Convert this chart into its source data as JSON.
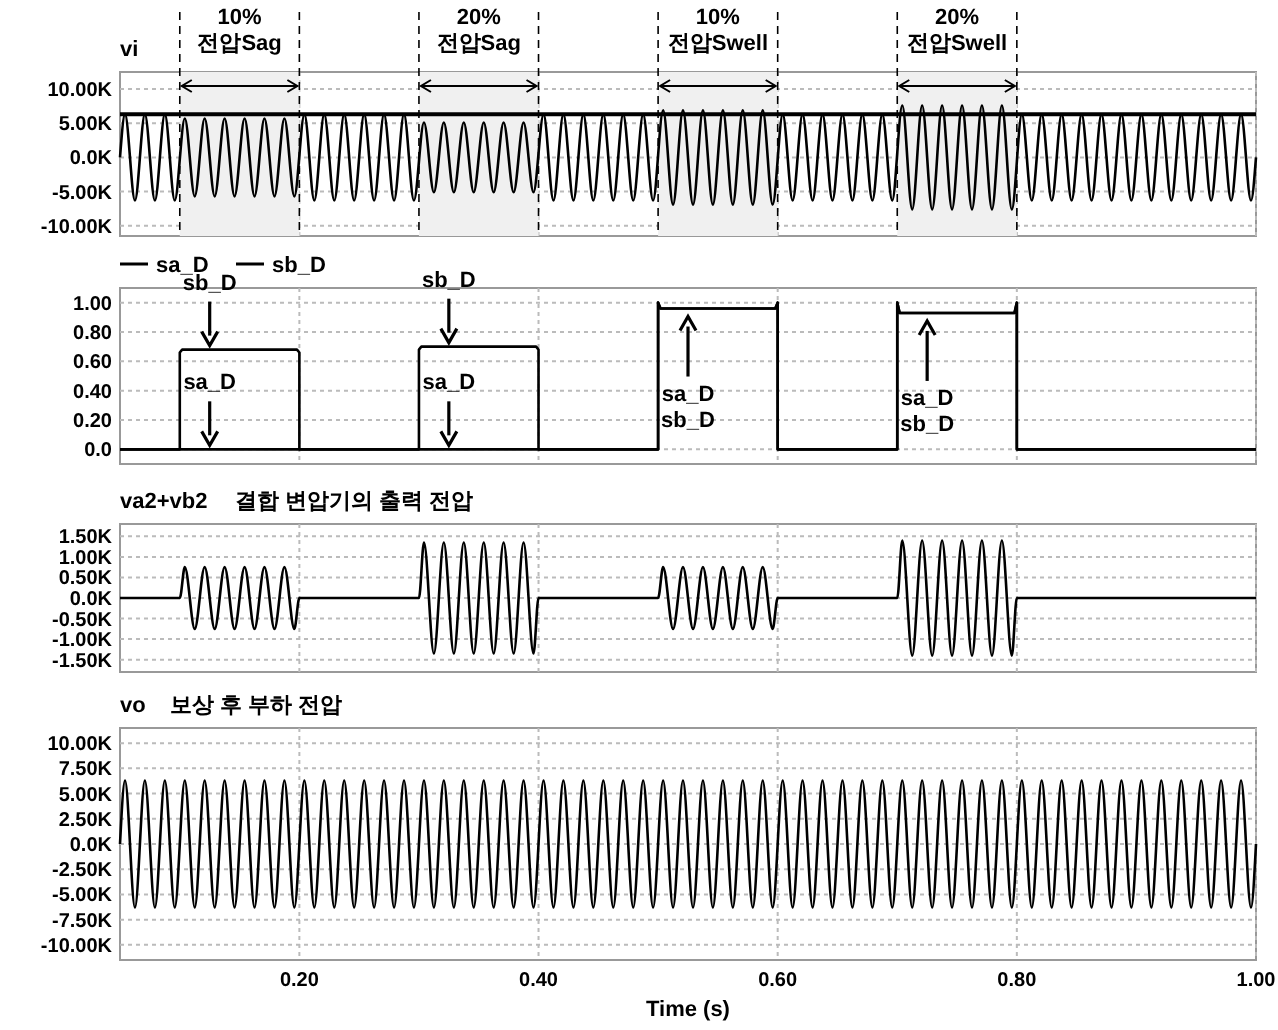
{
  "chart_data": [
    {
      "type": "line",
      "xlim": [
        0.05,
        1.0
      ],
      "ylim": [
        -11500,
        12500
      ],
      "xticks": [
        {
          "value": 0.2,
          "label": null
        },
        {
          "value": 0.4,
          "label": null
        },
        {
          "value": 0.6,
          "label": null
        },
        {
          "value": 0.8,
          "label": null
        },
        {
          "value": 1.0,
          "label": null
        }
      ],
      "yticks": [
        {
          "value": 10000,
          "label": "10.00K"
        },
        {
          "value": 5000,
          "label": "5.00K"
        },
        {
          "value": 0,
          "label": "0.0K"
        },
        {
          "value": -5000,
          "label": "-5.00K"
        },
        {
          "value": -10000,
          "label": "-10.00K"
        }
      ],
      "tick_labels": "y",
      "grid": true,
      "legend": "top left",
      "x": [
        0.05,
        0.0542,
        0.0625,
        0.0708,
        0.0792,
        0.0875,
        0.0958,
        0.1042,
        0.1125,
        0.1208,
        0.1292,
        0.1375,
        0.1458,
        0.1542,
        0.1625,
        0.1708,
        0.1792,
        0.1875,
        0.1958,
        0.2042,
        0.2125,
        0.2208,
        0.2292,
        0.2375,
        0.2458,
        0.2542,
        0.2625,
        0.2708,
        0.2792,
        0.2875,
        0.2958,
        0.3042,
        0.3125,
        0.3208,
        0.3292,
        0.3375,
        0.3458,
        0.3542,
        0.3625,
        0.3708,
        0.3792,
        0.3875,
        0.3958,
        0.4042,
        0.4125,
        0.4208,
        0.4292,
        0.4375,
        0.4458,
        0.4542,
        0.4625,
        0.4708,
        0.4792,
        0.4875,
        0.4958,
        0.5042,
        0.5125,
        0.5208,
        0.5292,
        0.5375,
        0.5458,
        0.5542,
        0.5625,
        0.5708,
        0.5792,
        0.5875,
        0.5958,
        0.6042,
        0.6125,
        0.6208,
        0.6292,
        0.6375,
        0.6458,
        0.6542,
        0.6625,
        0.6708,
        0.6792,
        0.6875,
        0.6958,
        0.7042,
        0.7125,
        0.7208,
        0.7292,
        0.7375,
        0.7458,
        0.7542,
        0.7625,
        0.7708,
        0.7792,
        0.7875,
        0.7958,
        0.8042,
        0.8125,
        0.8208,
        0.8292,
        0.8375,
        0.8458,
        0.8542,
        0.8625,
        0.8708,
        0.8792,
        0.8875,
        0.8958,
        0.9042,
        0.9125,
        0.9208,
        0.9292,
        0.9375,
        0.9458,
        0.9542,
        0.9625,
        0.9708,
        0.9792,
        0.9875,
        0.9958,
        1.0
      ],
      "series": [
        {
          "name": "vi",
          "color": "#000000",
          "values": [
            0,
            6300,
            -6300,
            6300,
            -6300,
            6300,
            -6300,
            5700,
            -5700,
            5700,
            -5700,
            5700,
            -5700,
            5700,
            -5700,
            5700,
            -5700,
            5700,
            -5700,
            6300,
            -6300,
            6300,
            -6300,
            6300,
            -6300,
            6300,
            -6300,
            6300,
            -6300,
            6300,
            -6300,
            5100,
            -5100,
            5100,
            -5100,
            5100,
            -5100,
            5100,
            -5100,
            5100,
            -5100,
            5100,
            -5100,
            6300,
            -6300,
            6300,
            -6300,
            6300,
            -6300,
            6300,
            -6300,
            6300,
            -6300,
            6300,
            -6300,
            6900,
            -6900,
            6900,
            -6900,
            6900,
            -6900,
            6900,
            -6900,
            6900,
            -6900,
            6900,
            -6900,
            6300,
            -6300,
            6300,
            -6300,
            6300,
            -6300,
            6300,
            -6300,
            6300,
            -6300,
            6300,
            -6300,
            7600,
            -7600,
            7600,
            -7600,
            7600,
            -7600,
            7600,
            -7600,
            7600,
            -7600,
            7600,
            -7600,
            6300,
            -6300,
            6300,
            -6300,
            6300,
            -6300,
            6300,
            -6300,
            6300,
            -6300,
            6300,
            -6300,
            6300,
            -6300,
            6300,
            -6300,
            6300,
            -6300,
            6300,
            -6300,
            6300,
            -6300,
            6300,
            -6300,
            0
          ]
        }
      ],
      "ref_lines": [
        {
          "axis": "y",
          "value": 6300,
          "color": "#000000"
        }
      ],
      "bands": [
        {
          "axis": "x",
          "from": 0.1,
          "to": 0.2,
          "label": "10%\n전압Sag"
        },
        {
          "axis": "x",
          "from": 0.3,
          "to": 0.4,
          "label": "20%\n전압Sag"
        },
        {
          "axis": "x",
          "from": 0.5,
          "to": 0.6,
          "label": "10%\n전압Swell"
        },
        {
          "axis": "x",
          "from": 0.7,
          "to": 0.8,
          "label": "20%\n전압Swell"
        }
      ]
    },
    {
      "type": "line",
      "xlim": [
        0.05,
        1.0
      ],
      "ylim": [
        -0.1,
        1.1
      ],
      "xticks": [
        {
          "value": 0.2,
          "label": null
        },
        {
          "value": 0.4,
          "label": null
        },
        {
          "value": 0.6,
          "label": null
        },
        {
          "value": 0.8,
          "label": null
        },
        {
          "value": 1.0,
          "label": null
        }
      ],
      "yticks": [
        {
          "value": 0,
          "label": "0.0"
        },
        {
          "value": 0.2,
          "label": "0.20"
        },
        {
          "value": 0.4,
          "label": "0.40"
        },
        {
          "value": 0.6,
          "label": "0.60"
        },
        {
          "value": 0.8,
          "label": "0.80"
        },
        {
          "value": 1.0,
          "label": "1.00"
        }
      ],
      "tick_labels": "y",
      "grid": true,
      "legend": "top left",
      "series": [
        {
          "name": "sa_D",
          "color": "#000000",
          "x": [
            0.05,
            0.5,
            0.5,
            0.502,
            0.598,
            0.6,
            0.6,
            0.7,
            0.7,
            0.702,
            0.798,
            0.8,
            0.8,
            1.0
          ],
          "values": [
            0,
            0,
            1.0,
            0.96,
            0.96,
            1.0,
            0,
            0,
            1.0,
            0.93,
            0.93,
            1.0,
            0,
            0
          ]
        },
        {
          "name": "sb_D",
          "color": "#000000",
          "x": [
            0.05,
            0.1,
            0.1,
            0.102,
            0.198,
            0.2,
            0.2,
            0.3,
            0.3,
            0.302,
            0.398,
            0.4,
            0.4,
            0.5,
            0.5,
            0.502,
            0.598,
            0.6,
            0.6,
            0.7,
            0.7,
            0.702,
            0.798,
            0.8,
            0.8,
            1.0
          ],
          "values": [
            0,
            0,
            0.66,
            0.68,
            0.68,
            0.66,
            0,
            0,
            0.68,
            0.7,
            0.7,
            0.68,
            0,
            0,
            1.0,
            0.96,
            0.96,
            1.0,
            0,
            0,
            1.0,
            0.93,
            0.93,
            1.0,
            0,
            0
          ]
        }
      ],
      "annotations": [
        {
          "text": "sb_D",
          "x": 0.125,
          "y": 0.68
        },
        {
          "text": "sa_D",
          "x": 0.125,
          "y": 0
        },
        {
          "text": "sb_D",
          "x": 0.325,
          "y": 0.7
        },
        {
          "text": "sa_D",
          "x": 0.325,
          "y": 0
        },
        {
          "text": "sa_D\nsb_D",
          "x": 0.525,
          "y": 0.96
        },
        {
          "text": "sa_D\nsb_D",
          "x": 0.725,
          "y": 0.93
        }
      ]
    },
    {
      "type": "line",
      "title": "결합 변압기의 출력 전압",
      "xlim": [
        0.05,
        1.0
      ],
      "ylim": [
        -1800,
        1800
      ],
      "xticks": [
        {
          "value": 0.2,
          "label": null
        },
        {
          "value": 0.4,
          "label": null
        },
        {
          "value": 0.6,
          "label": null
        },
        {
          "value": 0.8,
          "label": null
        },
        {
          "value": 1.0,
          "label": null
        }
      ],
      "yticks": [
        {
          "value": 1500,
          "label": "1.50K"
        },
        {
          "value": 1000,
          "label": "1.00K"
        },
        {
          "value": 500,
          "label": "0.50K"
        },
        {
          "value": 0,
          "label": "0.0K"
        },
        {
          "value": -500,
          "label": "-0.50K"
        },
        {
          "value": -1000,
          "label": "-1.00K"
        },
        {
          "value": -1500,
          "label": "-1.50K"
        }
      ],
      "tick_labels": "y",
      "grid": true,
      "legend": "top left",
      "series": [
        {
          "name": "va2+vb2",
          "color": "#000000",
          "x": [
            0.05,
            0.1,
            0.1042,
            0.1125,
            0.1208,
            0.1292,
            0.1375,
            0.1458,
            0.1542,
            0.1625,
            0.1708,
            0.1792,
            0.1875,
            0.1958,
            0.2,
            0.3,
            0.3042,
            0.3125,
            0.3208,
            0.3292,
            0.3375,
            0.3458,
            0.3542,
            0.3625,
            0.3708,
            0.3792,
            0.3875,
            0.3958,
            0.4,
            0.5,
            0.5042,
            0.5125,
            0.5208,
            0.5292,
            0.5375,
            0.5458,
            0.5542,
            0.5625,
            0.5708,
            0.5792,
            0.5875,
            0.5958,
            0.6,
            0.7,
            0.7042,
            0.7125,
            0.7208,
            0.7292,
            0.7375,
            0.7458,
            0.7542,
            0.7625,
            0.7708,
            0.7792,
            0.7875,
            0.7958,
            0.8,
            1.0
          ],
          "values": [
            0,
            0,
            750,
            -750,
            750,
            -750,
            750,
            -750,
            750,
            -750,
            750,
            -750,
            750,
            -750,
            0,
            0,
            1350,
            -1350,
            1350,
            -1350,
            1350,
            -1350,
            1350,
            -1350,
            1350,
            -1350,
            1350,
            -1350,
            0,
            0,
            750,
            -750,
            750,
            -750,
            750,
            -750,
            750,
            -750,
            750,
            -750,
            750,
            -750,
            0,
            0,
            1400,
            -1400,
            1400,
            -1400,
            1400,
            -1400,
            1400,
            -1400,
            1400,
            -1400,
            1400,
            -1400,
            0,
            0
          ]
        }
      ]
    },
    {
      "type": "line",
      "title": "보상 후 부하 전압",
      "xlabel": "Time (s)",
      "xlim": [
        0.05,
        1.0
      ],
      "ylim": [
        -11500,
        11500
      ],
      "xticks": [
        {
          "value": 0.2,
          "label": "0.20"
        },
        {
          "value": 0.4,
          "label": "0.40"
        },
        {
          "value": 0.6,
          "label": "0.60"
        },
        {
          "value": 0.8,
          "label": "0.80"
        },
        {
          "value": 1.0,
          "label": "1.00"
        }
      ],
      "yticks": [
        {
          "value": 10000,
          "label": "10.00K"
        },
        {
          "value": 7500,
          "label": "7.50K"
        },
        {
          "value": 5000,
          "label": "5.00K"
        },
        {
          "value": 2500,
          "label": "2.50K"
        },
        {
          "value": 0,
          "label": "0.0K"
        },
        {
          "value": -2500,
          "label": "-2.50K"
        },
        {
          "value": -5000,
          "label": "-5.00K"
        },
        {
          "value": -7500,
          "label": "-7.50K"
        },
        {
          "value": -10000,
          "label": "-10.00K"
        }
      ],
      "grid": true,
      "legend": "top left",
      "x": [
        0.05,
        0.0542,
        0.0625,
        0.0708,
        0.0792,
        0.0875,
        0.0958,
        0.1042,
        0.1125,
        0.1208,
        0.1292,
        0.1375,
        0.1458,
        0.1542,
        0.1625,
        0.1708,
        0.1792,
        0.1875,
        0.1958,
        0.2042,
        0.2125,
        0.2208,
        0.2292,
        0.2375,
        0.2458,
        0.2542,
        0.2625,
        0.2708,
        0.2792,
        0.2875,
        0.2958,
        0.3042,
        0.3125,
        0.3208,
        0.3292,
        0.3375,
        0.3458,
        0.3542,
        0.3625,
        0.3708,
        0.3792,
        0.3875,
        0.3958,
        0.4042,
        0.4125,
        0.4208,
        0.4292,
        0.4375,
        0.4458,
        0.4542,
        0.4625,
        0.4708,
        0.4792,
        0.4875,
        0.4958,
        0.5042,
        0.5125,
        0.5208,
        0.5292,
        0.5375,
        0.5458,
        0.5542,
        0.5625,
        0.5708,
        0.5792,
        0.5875,
        0.5958,
        0.6042,
        0.6125,
        0.6208,
        0.6292,
        0.6375,
        0.6458,
        0.6542,
        0.6625,
        0.6708,
        0.6792,
        0.6875,
        0.6958,
        0.7042,
        0.7125,
        0.7208,
        0.7292,
        0.7375,
        0.7458,
        0.7542,
        0.7625,
        0.7708,
        0.7792,
        0.7875,
        0.7958,
        0.8042,
        0.8125,
        0.8208,
        0.8292,
        0.8375,
        0.8458,
        0.8542,
        0.8625,
        0.8708,
        0.8792,
        0.8875,
        0.8958,
        0.9042,
        0.9125,
        0.9208,
        0.9292,
        0.9375,
        0.9458,
        0.9542,
        0.9625,
        0.9708,
        0.9792,
        0.9875,
        0.9958,
        1.0
      ],
      "series": [
        {
          "name": "vo",
          "color": "#000000",
          "values": [
            0,
            6300,
            -6300,
            6300,
            -6300,
            6300,
            -6300,
            6300,
            -6300,
            6300,
            -6300,
            6300,
            -6300,
            6300,
            -6300,
            6300,
            -6300,
            6300,
            -6300,
            6300,
            -6300,
            6300,
            -6300,
            6300,
            -6300,
            6300,
            -6300,
            6300,
            -6300,
            6300,
            -6300,
            6300,
            -6300,
            6300,
            -6300,
            6300,
            -6300,
            6300,
            -6300,
            6300,
            -6300,
            6300,
            -6300,
            6300,
            -6300,
            6300,
            -6300,
            6300,
            -6300,
            6300,
            -6300,
            6300,
            -6300,
            6300,
            -6300,
            6300,
            -6300,
            6300,
            -6300,
            6300,
            -6300,
            6300,
            -6300,
            6300,
            -6300,
            6300,
            -6300,
            6300,
            -6300,
            6300,
            -6300,
            6300,
            -6300,
            6300,
            -6300,
            6300,
            -6300,
            6300,
            -6300,
            6300,
            -6300,
            6300,
            -6300,
            6300,
            -6300,
            6300,
            -6300,
            6300,
            -6300,
            6300,
            -6300,
            6300,
            -6300,
            6300,
            -6300,
            6300,
            -6300,
            6300,
            -6300,
            6300,
            -6300,
            6300,
            -6300,
            6300,
            -6300,
            6300,
            -6300,
            6300,
            -6300,
            6300,
            -6300,
            6300,
            -6300,
            6300,
            -6300,
            0
          ]
        }
      ]
    }
  ]
}
